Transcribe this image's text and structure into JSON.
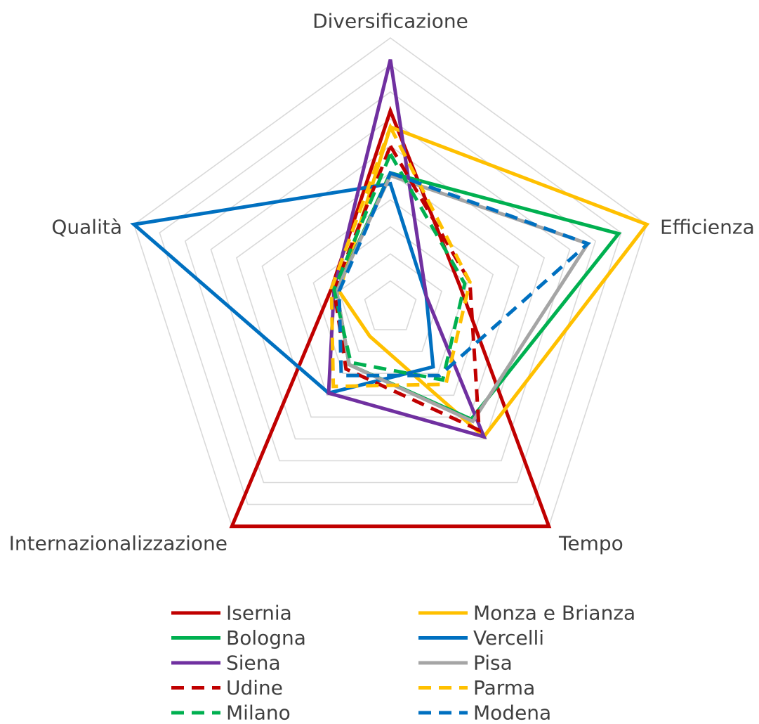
{
  "chart_data": {
    "type": "radar",
    "axes": [
      "Diversificazione",
      "Efficienza",
      "Tempo",
      "Internazionalizzazione",
      "Qualità"
    ],
    "r_range": [
      0,
      10
    ],
    "grid": true,
    "legend_position": "bottom",
    "series": [
      {
        "name": "Isernia",
        "color": "#C00000",
        "dash": false,
        "values": [
          7.3,
          2.7,
          10.0,
          10.0,
          2.3
        ]
      },
      {
        "name": "Monza e Brianza",
        "color": "#FFC000",
        "dash": false,
        "values": [
          6.7,
          10.0,
          5.9,
          1.3,
          2.0
        ]
      },
      {
        "name": "Bologna",
        "color": "#00B050",
        "dash": false,
        "values": [
          5.0,
          8.9,
          5.1,
          2.6,
          2.1
        ]
      },
      {
        "name": "Vercelli",
        "color": "#0070C0",
        "dash": false,
        "values": [
          4.6,
          1.4,
          2.7,
          3.9,
          10.0
        ]
      },
      {
        "name": "Siena",
        "color": "#7030A0",
        "dash": false,
        "values": [
          9.2,
          1.4,
          5.9,
          3.9,
          2.2
        ]
      },
      {
        "name": "Pisa",
        "color": "#A5A5A5",
        "dash": false,
        "values": [
          4.9,
          7.7,
          5.2,
          2.6,
          2.1
        ]
      },
      {
        "name": "Udine",
        "color": "#C00000",
        "dash": true,
        "values": [
          6.0,
          3.1,
          5.6,
          2.8,
          2.2
        ]
      },
      {
        "name": "Parma",
        "color": "#FFC000",
        "dash": true,
        "values": [
          6.7,
          3.1,
          3.5,
          3.6,
          2.3
        ]
      },
      {
        "name": "Milano",
        "color": "#00B050",
        "dash": true,
        "values": [
          5.7,
          2.9,
          3.3,
          2.5,
          2.2
        ]
      },
      {
        "name": "Modena",
        "color": "#0070C0",
        "dash": true,
        "values": [
          5.0,
          7.7,
          3.1,
          3.1,
          2.0
        ]
      }
    ]
  }
}
